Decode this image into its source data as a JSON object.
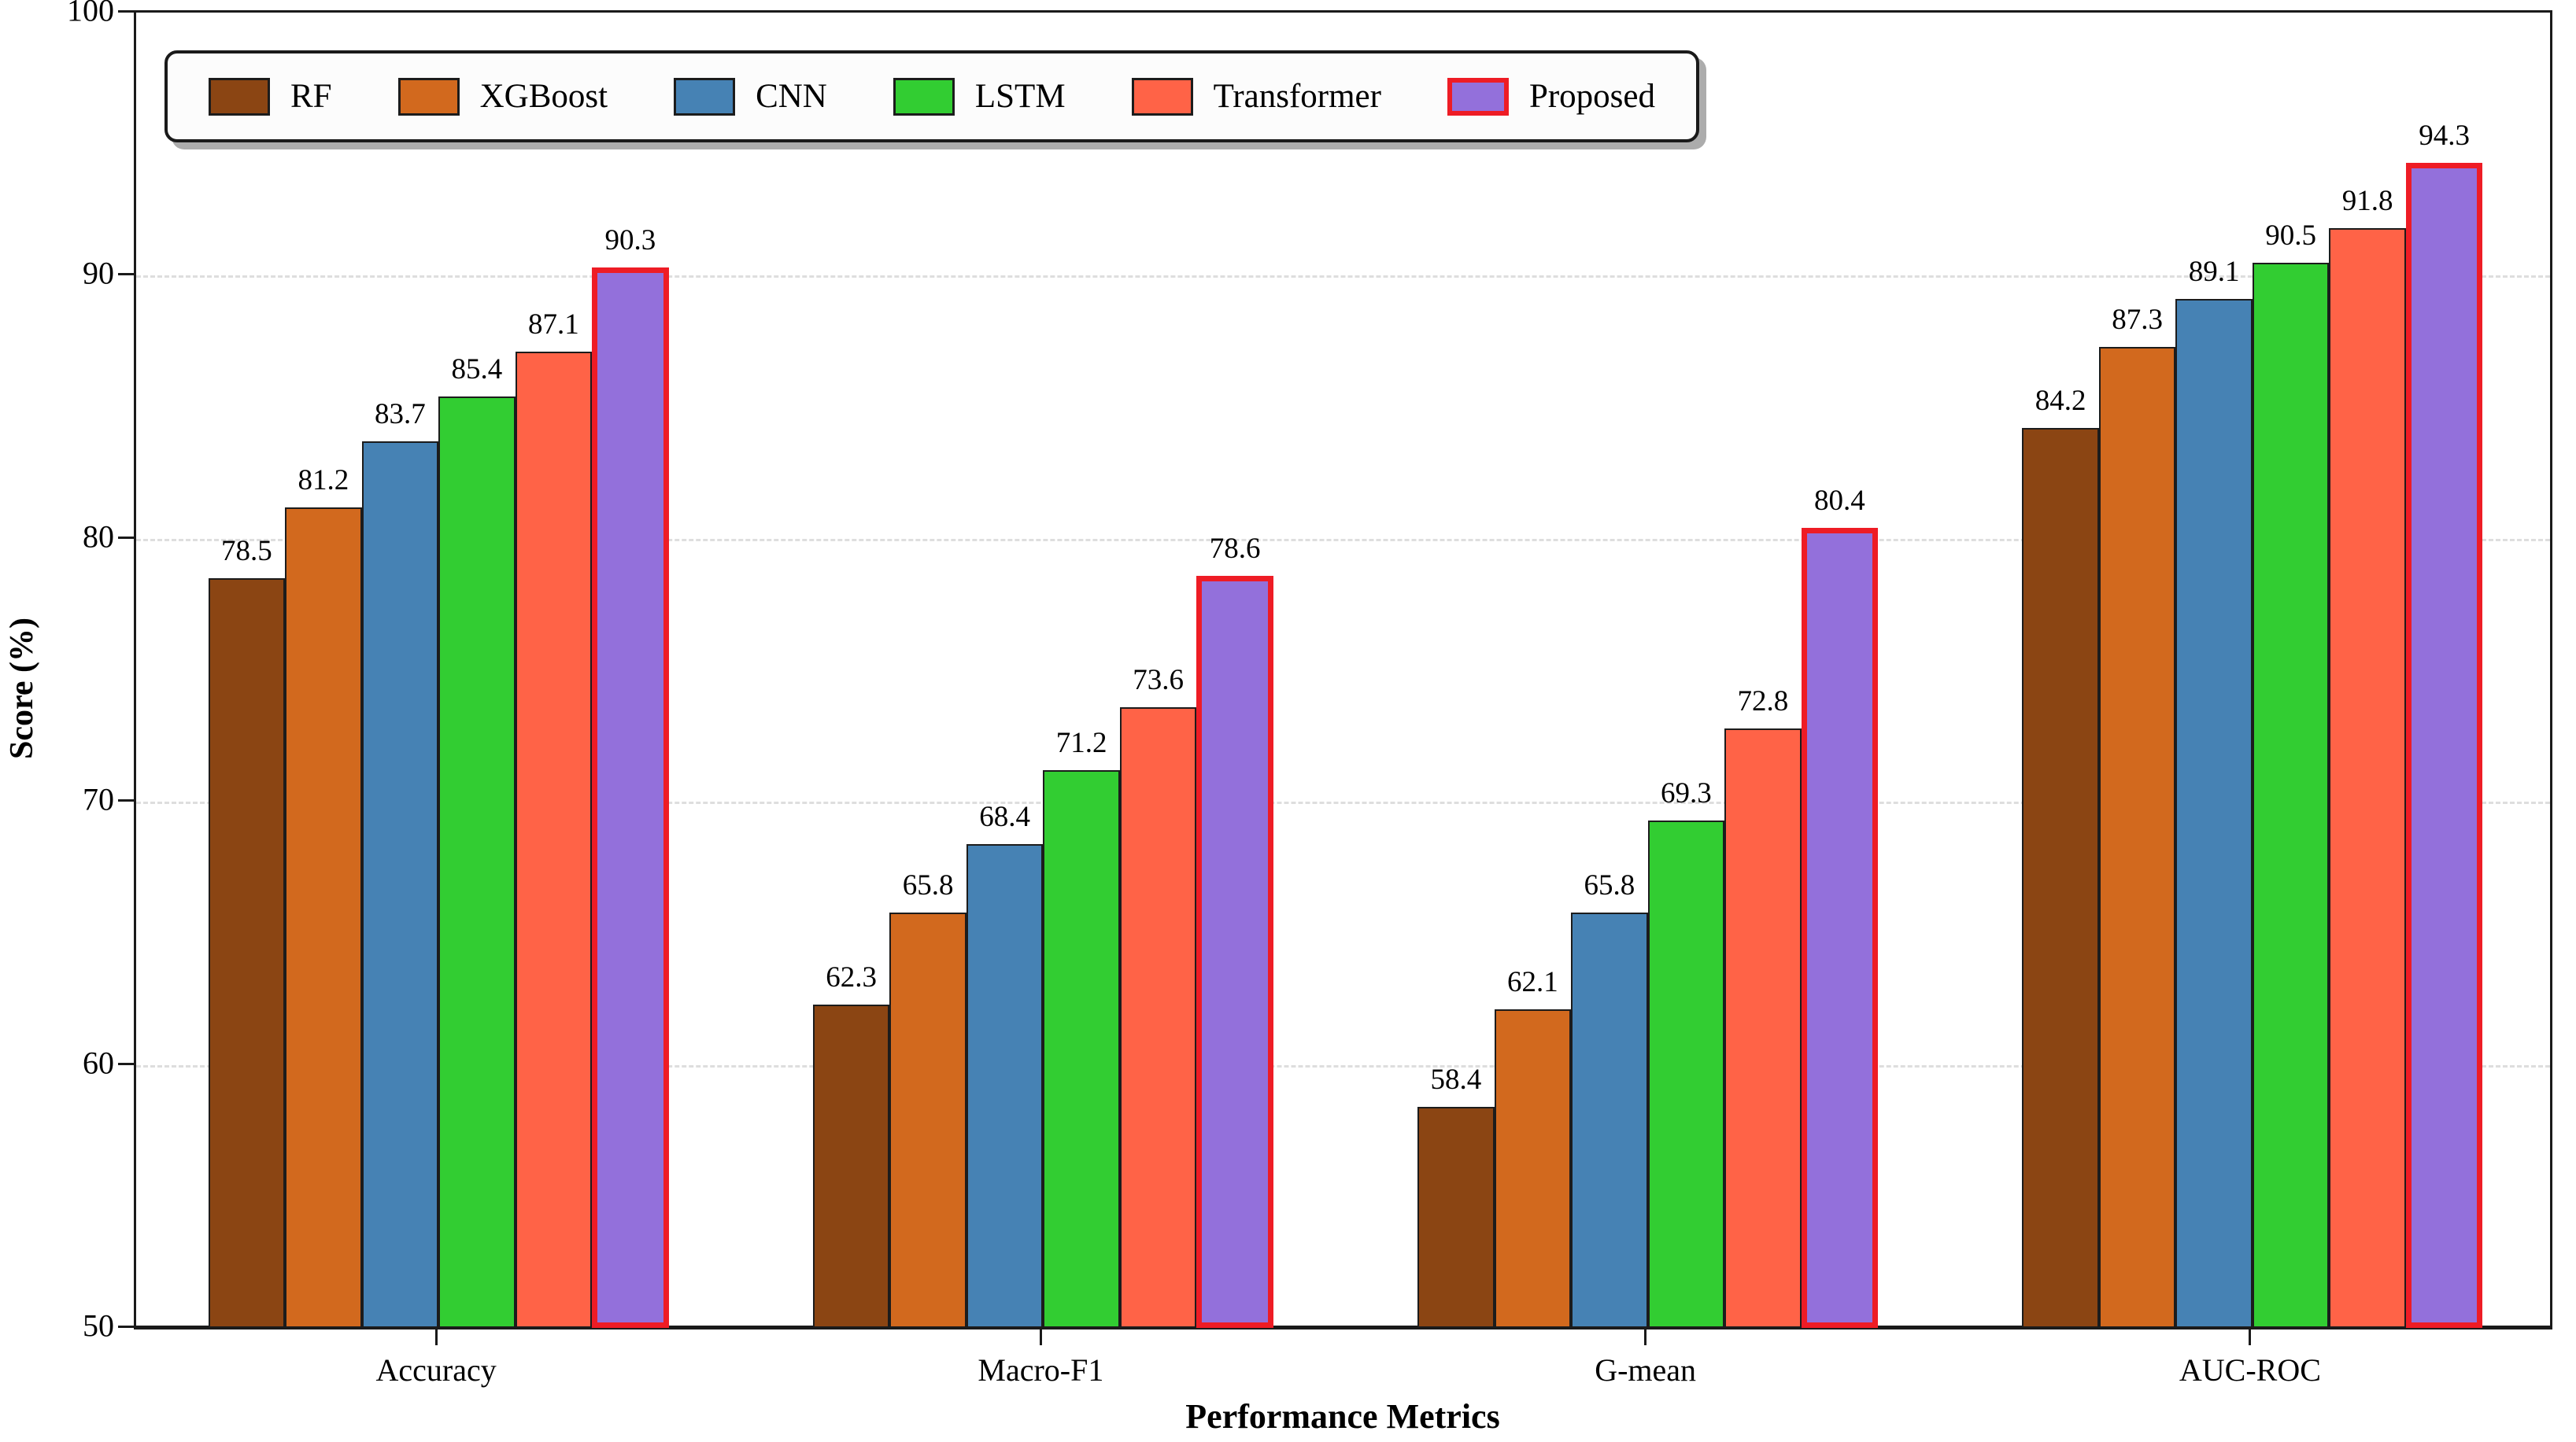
{
  "chart_data": {
    "type": "bar",
    "title": "",
    "xlabel": "Performance Metrics",
    "ylabel": "Score (%)",
    "ylim": [
      50,
      100
    ],
    "yticks": [
      50,
      60,
      70,
      80,
      90,
      100
    ],
    "gridlines": {
      "axis": "y",
      "at": [
        60,
        70,
        80,
        90
      ],
      "style": "dashed",
      "color": "#dedede"
    },
    "legend_position": "top-left",
    "categories": [
      "Accuracy",
      "Macro-F1",
      "G-mean",
      "AUC-ROC"
    ],
    "series": [
      {
        "name": "RF",
        "color": "#8B4513",
        "edge_color": "#1c1c1c",
        "highlight": false,
        "values": [
          78.5,
          62.3,
          58.4,
          84.2
        ]
      },
      {
        "name": "XGBoost",
        "color": "#D2691E",
        "edge_color": "#1c1c1c",
        "highlight": false,
        "values": [
          81.2,
          65.8,
          62.1,
          87.3
        ]
      },
      {
        "name": "CNN",
        "color": "#4682B4",
        "edge_color": "#1c1c1c",
        "highlight": false,
        "values": [
          83.7,
          68.4,
          65.8,
          89.1
        ]
      },
      {
        "name": "LSTM",
        "color": "#32CD32",
        "edge_color": "#1c1c1c",
        "highlight": false,
        "values": [
          85.4,
          71.2,
          69.3,
          90.5
        ]
      },
      {
        "name": "Transformer",
        "color": "#FF6347",
        "edge_color": "#1c1c1c",
        "highlight": false,
        "values": [
          87.1,
          73.6,
          72.8,
          91.8
        ]
      },
      {
        "name": "Proposed",
        "color": "#9370DB",
        "edge_color": "#EE1C25",
        "highlight": true,
        "values": [
          90.3,
          78.6,
          80.4,
          94.3
        ]
      }
    ]
  }
}
